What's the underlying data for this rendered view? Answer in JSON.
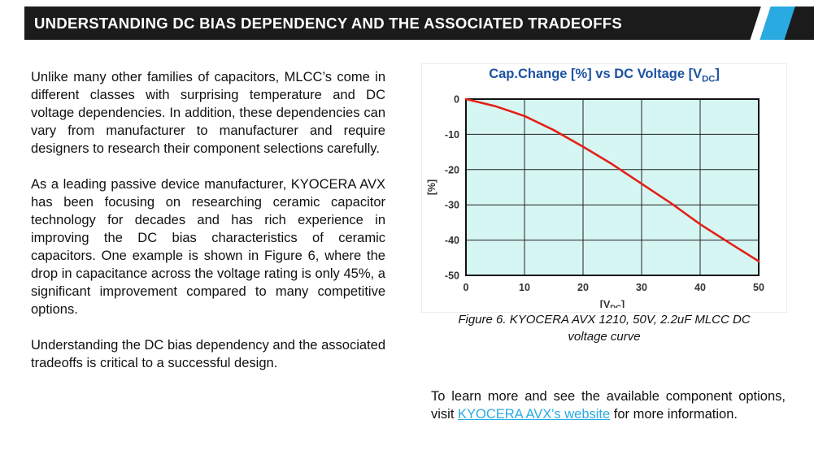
{
  "header": {
    "title": "UNDERSTANDING DC BIAS DEPENDENCY AND THE ASSOCIATED TRADEOFFS"
  },
  "left_column": {
    "paragraphs": [
      "Unlike many other families of capacitors, MLCC’s come in different classes with surprising temperature and DC voltage dependencies. In addition, these dependencies can vary from manufacturer to manufacturer and require designers to research their component selections carefully.",
      "As a leading passive device manufacturer, KYOCERA AVX has been focusing on researching ceramic capacitor technology for decades and has rich experience in improving the DC bias characteristics of ceramic capacitors. One example is shown in Figure 6, where the drop in capacitance across the voltage rating is only 45%, a significant improvement compared to many competitive options.",
      "Understanding the DC bias dependency and the associated tradeoffs is critical to a successful design."
    ]
  },
  "chart": {
    "title_main": "Cap.Change [%] vs DC Voltage [V",
    "title_sub": "DC",
    "title_close": "]",
    "ylabel": "[%]",
    "xlabel_main": "[V",
    "xlabel_sub": "DC",
    "xlabel_close": "]"
  },
  "chart_data": {
    "type": "line",
    "title": "Cap.Change [%] vs DC Voltage [V_DC]",
    "xlabel": "[V_DC]",
    "ylabel": "[%]",
    "x": [
      0,
      5,
      10,
      15,
      20,
      25,
      30,
      35,
      40,
      45,
      50
    ],
    "values": [
      0,
      -2.0,
      -4.8,
      -8.8,
      -13.5,
      -18.5,
      -24.0,
      -29.5,
      -35.5,
      -40.8,
      -46.0
    ],
    "xlim": [
      0,
      50
    ],
    "ylim": [
      -50,
      0
    ],
    "x_ticks": [
      0,
      10,
      20,
      30,
      40,
      50
    ],
    "y_ticks": [
      0,
      -10,
      -20,
      -30,
      -40,
      -50
    ],
    "grid": true,
    "legend": "none",
    "series_name": "Cap change vs DC voltage",
    "series_color": "#e32119",
    "plot_bg": "#d6f6f3"
  },
  "figure": {
    "caption": "Figure 6. KYOCERA AVX 1210, 50V, 2.2uF MLCC DC voltage curve"
  },
  "footer": {
    "pre_link": "To learn more and see the available component options, visit ",
    "link_text": "KYOCERA AVX's website",
    "post_link": " for more information."
  },
  "colors": {
    "header_bg": "#1b1b1b",
    "accent_cyan": "#29abe2",
    "chart_title_blue": "#1d52a2",
    "curve_red": "#e32119",
    "plot_background": "#d6f6f3",
    "link": "#29abe2",
    "body_text": "#111111"
  }
}
